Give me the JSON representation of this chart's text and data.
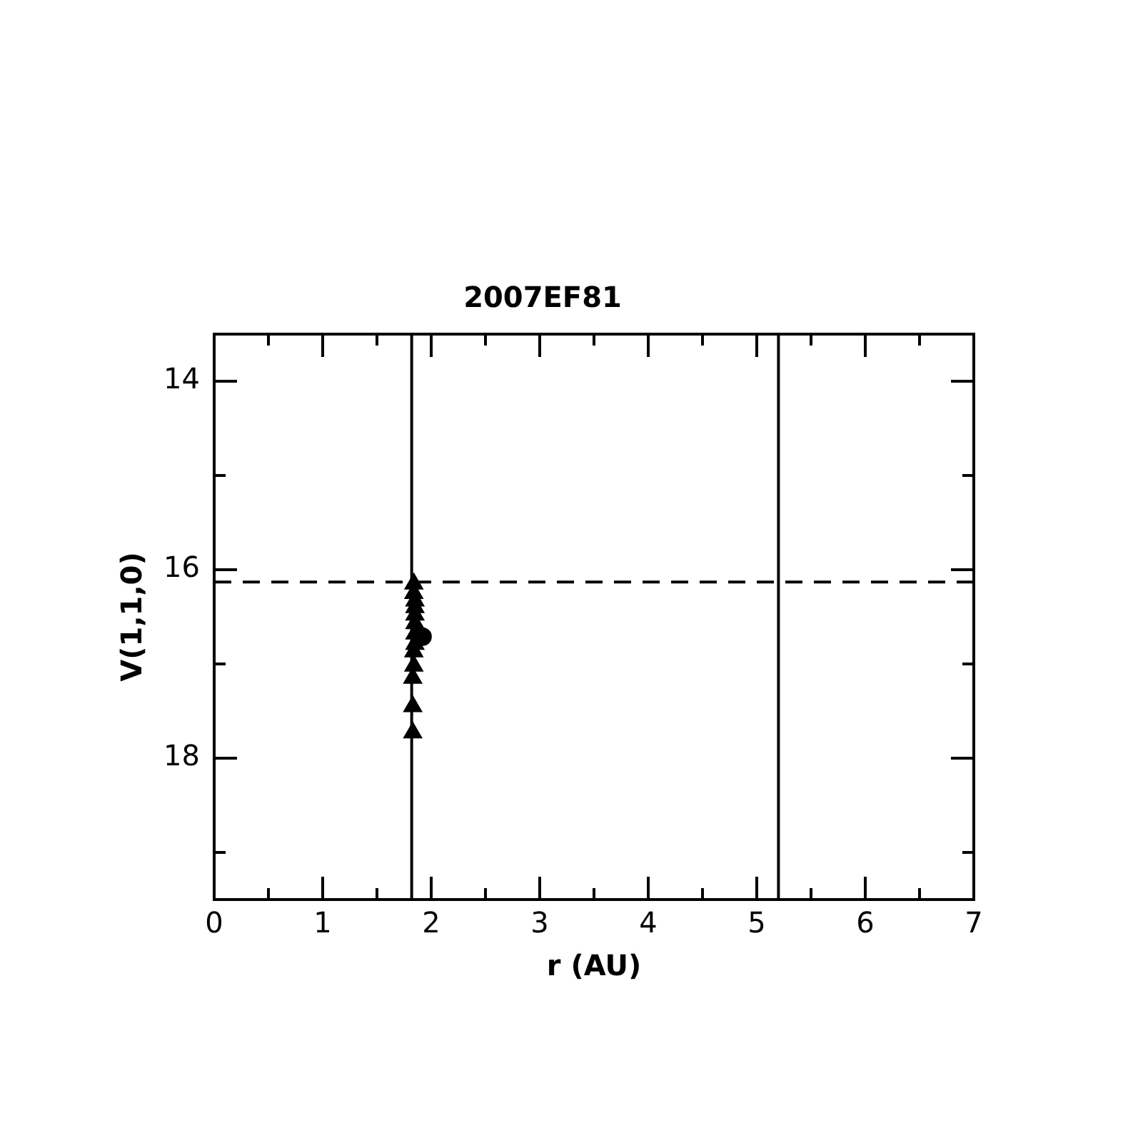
{
  "chart_data": {
    "type": "scatter",
    "title": "2007EF81",
    "xlabel": "r (AU)",
    "ylabel": "V(1,1,0)",
    "xlim": [
      0,
      7
    ],
    "xticks": [
      0,
      {
        "value": 0.5,
        "label": null
      },
      1,
      {
        "value": 1.5,
        "label": null
      },
      2,
      {
        "value": 2.5,
        "label": null
      },
      3,
      {
        "value": 3.5,
        "label": null
      },
      4,
      {
        "value": 4.5,
        "label": null
      },
      5,
      {
        "value": 5.5,
        "label": null
      },
      6,
      {
        "value": 6.5,
        "label": null
      },
      7
    ],
    "ylim": [
      19.5,
      13.5
    ],
    "yticks": [
      14,
      {
        "value": 15,
        "label": null
      },
      16,
      {
        "value": 17,
        "label": null
      },
      18,
      {
        "value": 19,
        "label": null
      }
    ],
    "grid": false,
    "legend": false,
    "series": [
      {
        "color": "#000000",
        "marker": "triangle",
        "x": [
          1.84,
          1.84,
          1.85,
          1.85,
          1.85,
          1.85,
          1.85,
          1.85,
          1.84,
          1.84,
          1.83,
          1.83,
          1.83
        ],
        "values": [
          16.15,
          16.25,
          16.33,
          16.4,
          16.48,
          16.57,
          16.68,
          16.79,
          16.87,
          17.02,
          17.15,
          17.45,
          17.73
        ]
      },
      {
        "color": "#000000",
        "marker": "circle",
        "x": [
          1.92
        ],
        "values": [
          16.71
        ]
      }
    ],
    "ref_lines": [
      {
        "axis": "x",
        "value": 1.82,
        "color": "#000000",
        "line_style": "solid"
      },
      {
        "axis": "x",
        "value": 5.2,
        "color": "#000000",
        "line_style": "solid"
      },
      {
        "axis": "y",
        "value": 16.13,
        "color": "#000000",
        "line_style": "dashed"
      }
    ]
  }
}
